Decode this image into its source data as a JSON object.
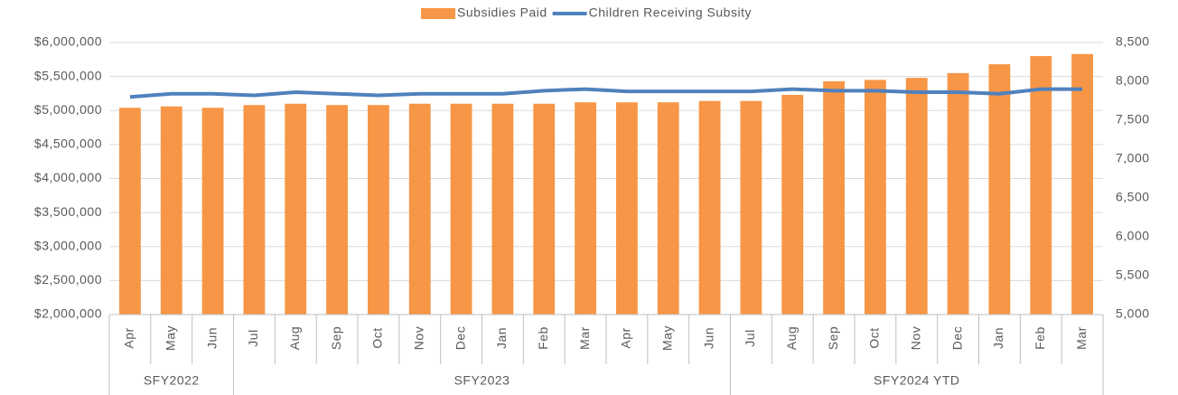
{
  "chart_data": {
    "type": "bar_line",
    "categories": [
      "Apr",
      "May",
      "Jun",
      "Jul",
      "Aug",
      "Sep",
      "Oct",
      "Nov",
      "Dec",
      "Jan",
      "Feb",
      "Mar",
      "Apr",
      "May",
      "Jun",
      "Jul",
      "Aug",
      "Sep",
      "Oct",
      "Nov",
      "Dec",
      "Jan",
      "Feb",
      "Mar"
    ],
    "category_groups": [
      {
        "name": "SFY2022",
        "span": 3
      },
      {
        "name": "SFY2023",
        "span": 12
      },
      {
        "name": "SFY2024 YTD",
        "span": 9
      }
    ],
    "series": [
      {
        "name": "Subsidies Paid",
        "type": "bar",
        "color": "#f79646",
        "values": [
          5040000,
          5060000,
          5040000,
          5080000,
          5100000,
          5080000,
          5080000,
          5100000,
          5100000,
          5100000,
          5100000,
          5120000,
          5120000,
          5120000,
          5140000,
          5140000,
          5230000,
          5430000,
          5450000,
          5480000,
          5550000,
          5680000,
          5800000,
          5830000
        ]
      },
      {
        "name": "Children Receiving Subsity",
        "type": "line",
        "axis": "y2",
        "color": "#4f81bd",
        "values": [
          7800,
          7840,
          7840,
          7820,
          7860,
          7840,
          7820,
          7840,
          7840,
          7840,
          7880,
          7900,
          7870,
          7870,
          7870,
          7870,
          7900,
          7880,
          7880,
          7860,
          7860,
          7840,
          7900,
          7900
        ]
      }
    ],
    "ylim": [
      2000000,
      6000000
    ],
    "yticks": [
      {
        "value": 2000000,
        "label": "$2,000,000"
      },
      {
        "value": 2500000,
        "label": "$2,500,000"
      },
      {
        "value": 3000000,
        "label": "$3,000,000"
      },
      {
        "value": 3500000,
        "label": "$3,500,000"
      },
      {
        "value": 4000000,
        "label": "$4,000,000"
      },
      {
        "value": 4500000,
        "label": "$4,500,000"
      },
      {
        "value": 5000000,
        "label": "$5,000,000"
      },
      {
        "value": 5500000,
        "label": "$5,500,000"
      },
      {
        "value": 6000000,
        "label": "$6,000,000"
      }
    ],
    "y2lim": [
      5000,
      8500
    ],
    "y2ticks": [
      {
        "value": 5000,
        "label": "5,000"
      },
      {
        "value": 5500,
        "label": "5,500"
      },
      {
        "value": 6000,
        "label": "6,000"
      },
      {
        "value": 6500,
        "label": "6,500"
      },
      {
        "value": 7000,
        "label": "7,000"
      },
      {
        "value": 7500,
        "label": "7,500"
      },
      {
        "value": 8000,
        "label": "8,000"
      },
      {
        "value": 8500,
        "label": "8,500"
      }
    ],
    "grid": true,
    "legend": "top"
  }
}
